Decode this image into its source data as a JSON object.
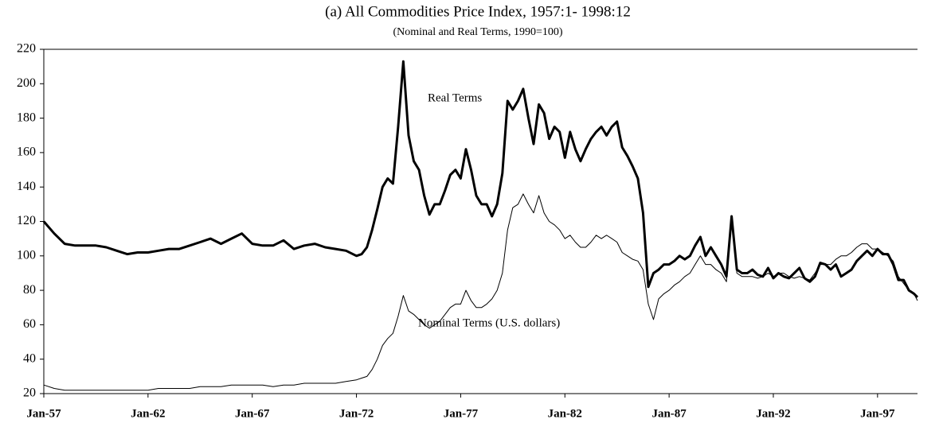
{
  "chart_data": {
    "type": "line",
    "title": "(a) All Commodities Price Index, 1957:1- 1998:12",
    "subtitle": "(Nominal and Real Terms, 1990=100)",
    "x": [
      "Jan-57",
      "Jul-57",
      "Jan-58",
      "Jul-58",
      "Jan-59",
      "Jul-59",
      "Jan-60",
      "Jul-60",
      "Jan-61",
      "Jul-61",
      "Jan-62",
      "Jul-62",
      "Jan-63",
      "Jul-63",
      "Jan-64",
      "Jul-64",
      "Jan-65",
      "Jul-65",
      "Jan-66",
      "Jul-66",
      "Jan-67",
      "Jul-67",
      "Jan-68",
      "Jul-68",
      "Jan-69",
      "Jul-69",
      "Jan-70",
      "Jul-70",
      "Jan-71",
      "Jul-71",
      "Jan-72",
      "Apr-72",
      "Jul-72",
      "Oct-72",
      "Jan-73",
      "Apr-73",
      "Jul-73",
      "Oct-73",
      "Jan-74",
      "Apr-74",
      "Jul-74",
      "Oct-74",
      "Jan-75",
      "Apr-75",
      "Jul-75",
      "Oct-75",
      "Jan-76",
      "Apr-76",
      "Jul-76",
      "Oct-76",
      "Jan-77",
      "Apr-77",
      "Jul-77",
      "Oct-77",
      "Jan-78",
      "Apr-78",
      "Jul-78",
      "Oct-78",
      "Jan-79",
      "Apr-79",
      "Jul-79",
      "Oct-79",
      "Jan-80",
      "Apr-80",
      "Jul-80",
      "Oct-80",
      "Jan-81",
      "Apr-81",
      "Jul-81",
      "Oct-81",
      "Jan-82",
      "Apr-82",
      "Jul-82",
      "Oct-82",
      "Jan-83",
      "Apr-83",
      "Jul-83",
      "Oct-83",
      "Jan-84",
      "Apr-84",
      "Jul-84",
      "Oct-84",
      "Jan-85",
      "Apr-85",
      "Jul-85",
      "Oct-85",
      "Jan-86",
      "Apr-86",
      "Jul-86",
      "Oct-86",
      "Jan-87",
      "Apr-87",
      "Jul-87",
      "Oct-87",
      "Jan-88",
      "Apr-88",
      "Jul-88",
      "Oct-88",
      "Jan-89",
      "Apr-89",
      "Jul-89",
      "Oct-89",
      "Jan-90",
      "Apr-90",
      "Jul-90",
      "Oct-90",
      "Jan-91",
      "Apr-91",
      "Jul-91",
      "Oct-91",
      "Jan-92",
      "Apr-92",
      "Jul-92",
      "Oct-92",
      "Jan-93",
      "Apr-93",
      "Jul-93",
      "Oct-93",
      "Jan-94",
      "Apr-94",
      "Jul-94",
      "Oct-94",
      "Jan-95",
      "Apr-95",
      "Jul-95",
      "Oct-95",
      "Jan-96",
      "Apr-96",
      "Jul-96",
      "Oct-96",
      "Jan-97",
      "Apr-97",
      "Jul-97",
      "Oct-97",
      "Jan-98",
      "Apr-98",
      "Jul-98",
      "Oct-98",
      "Dec-98"
    ],
    "series": [
      {
        "name": "Real Terms",
        "color": "#000000",
        "width": 3,
        "values": [
          120,
          113,
          107,
          106,
          106,
          106,
          105,
          103,
          101,
          102,
          102,
          103,
          104,
          104,
          106,
          108,
          110,
          107,
          110,
          113,
          107,
          106,
          106,
          109,
          104,
          106,
          107,
          105,
          104,
          103,
          100,
          101,
          105,
          115,
          127,
          140,
          145,
          142,
          175,
          213,
          170,
          155,
          150,
          135,
          124,
          130,
          130,
          138,
          147,
          150,
          145,
          162,
          150,
          135,
          130,
          130,
          123,
          130,
          148,
          190,
          185,
          190,
          197,
          180,
          165,
          188,
          183,
          168,
          175,
          172,
          157,
          172,
          162,
          155,
          162,
          168,
          172,
          175,
          170,
          175,
          178,
          163,
          158,
          152,
          145,
          125,
          82,
          90,
          92,
          95,
          95,
          97,
          100,
          98,
          100,
          106,
          111,
          100,
          105,
          100,
          95,
          88,
          123,
          92,
          90,
          90,
          92,
          89,
          88,
          93,
          87,
          90,
          88,
          87,
          90,
          93,
          87,
          85,
          88,
          96,
          95,
          92,
          95,
          88,
          90,
          92,
          97,
          100,
          103,
          100,
          104,
          101,
          101,
          95,
          86,
          86,
          80,
          78,
          76
        ]
      },
      {
        "name": "Nominal Terms (U.S. dollars)",
        "color": "#000000",
        "width": 1,
        "values": [
          25,
          23,
          22,
          22,
          22,
          22,
          22,
          22,
          22,
          22,
          22,
          23,
          23,
          23,
          23,
          24,
          24,
          24,
          25,
          25,
          25,
          25,
          24,
          25,
          25,
          26,
          26,
          26,
          26,
          27,
          28,
          29,
          30,
          34,
          40,
          48,
          52,
          55,
          65,
          77,
          68,
          66,
          63,
          60,
          58,
          60,
          62,
          66,
          70,
          72,
          72,
          80,
          74,
          70,
          70,
          72,
          75,
          80,
          90,
          115,
          128,
          130,
          136,
          130,
          125,
          135,
          125,
          120,
          118,
          115,
          110,
          112,
          108,
          105,
          105,
          108,
          112,
          110,
          112,
          110,
          108,
          102,
          100,
          98,
          97,
          92,
          72,
          63,
          75,
          78,
          80,
          83,
          85,
          88,
          90,
          95,
          100,
          95,
          95,
          92,
          90,
          85,
          122,
          90,
          88,
          88,
          88,
          87,
          88,
          90,
          88,
          90,
          90,
          88,
          87,
          88,
          87,
          86,
          90,
          95,
          95,
          95,
          98,
          100,
          100,
          102,
          105,
          107,
          107,
          104,
          104,
          102,
          100,
          97,
          88,
          84,
          80,
          78,
          74
        ]
      }
    ],
    "xlim": [
      "Jan-57",
      "Dec-98"
    ],
    "xticks": [
      "Jan-57",
      "Jan-62",
      "Jan-67",
      "Jan-72",
      "Jan-77",
      "Jan-82",
      "Jan-87",
      "Jan-92",
      "Jan-97"
    ],
    "ylim": [
      20,
      220
    ],
    "yticks": [
      20,
      40,
      60,
      80,
      100,
      120,
      140,
      160,
      180,
      200,
      220
    ],
    "grid": false
  }
}
